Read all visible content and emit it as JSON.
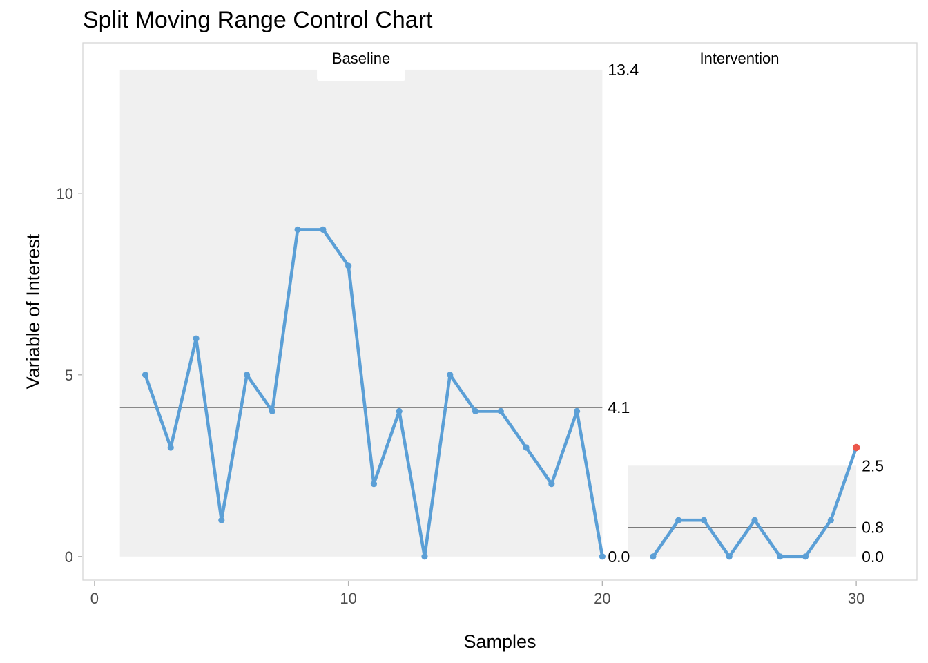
{
  "chart_data": {
    "type": "line",
    "title": "Split Moving Range Control Chart",
    "xlabel": "Samples",
    "ylabel": "Variable of Interest",
    "xlim": [
      -0.46,
      32.39
    ],
    "ylim": [
      -0.65,
      14.14
    ],
    "x_ticks": [
      0,
      10,
      20,
      30
    ],
    "y_ticks": [
      0,
      5,
      10
    ],
    "grid": false,
    "legend": "none",
    "phases": [
      {
        "label": "Baseline",
        "label_x": 10.5,
        "x": [
          2,
          3,
          4,
          5,
          6,
          7,
          8,
          9,
          10,
          11,
          12,
          13,
          14,
          15,
          16,
          17,
          18,
          19,
          20
        ],
        "values": [
          5,
          3,
          6,
          1,
          5,
          4,
          9,
          9,
          8,
          2,
          4,
          0,
          5,
          4,
          4,
          3,
          2,
          4,
          0
        ],
        "band": {
          "x_start": 1,
          "x_end": 20,
          "lcl": 0.0,
          "cl": 4.1,
          "ucl": 13.4
        },
        "limit_labels": {
          "ucl": "13.4",
          "cl": "4.1",
          "lcl": "0.0"
        },
        "signal_points": []
      },
      {
        "label": "Intervention",
        "label_x": 25.4,
        "x": [
          22,
          23,
          24,
          25,
          26,
          27,
          28,
          29,
          30
        ],
        "values": [
          0,
          1,
          1,
          0,
          1,
          0,
          0,
          1,
          3
        ],
        "band": {
          "x_start": 21,
          "x_end": 30,
          "lcl": 0.0,
          "cl": 0.8,
          "ucl": 2.5
        },
        "limit_labels": {
          "ucl": "2.5",
          "cl": "0.8",
          "lcl": "0.0"
        },
        "signal_points": [
          {
            "x": 30,
            "y": 3
          }
        ]
      }
    ],
    "colors": {
      "line": "#5b9fd6",
      "point": "#5b9fd6",
      "signal_point": "#ec574b",
      "band_fill": "#f0f0f0",
      "center_line": "#7a7a7a",
      "panel_border": "#d6d6d6",
      "tick_mark": "#b3b3b3",
      "tick_label": "#4d4d4d",
      "label_box_fill": "#ffffff",
      "background": "#ffffff"
    }
  }
}
